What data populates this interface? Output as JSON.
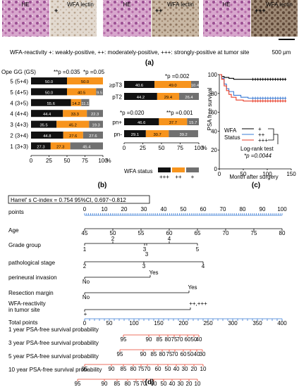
{
  "panel_a": {
    "images": [
      {
        "he_label": "HE",
        "wfa_label": "WFA lectin",
        "marker": "+"
      },
      {
        "he_label": "HE",
        "wfa_label": "WFA lectin",
        "marker": "++"
      },
      {
        "he_label": "HE",
        "wfa_label": "WFA lectin",
        "marker": "+++"
      }
    ],
    "caption": "WFA-reactivity +: weakly-positive, ++: moderately-positive, +++: strongly-positive at tumor site",
    "scale_bar": "500 μm",
    "label": "(a)"
  },
  "panel_b": {
    "label": "(b)",
    "axis_title": "Ope GG (GS)",
    "legend_title": "WFA status",
    "legend": [
      "+++",
      "++",
      "+"
    ],
    "colors": {
      "+++": "#111111",
      "++": "#f7941d",
      "+": "#707070"
    },
    "pvalues_left": [
      "**p =0.035",
      "*p =0.05"
    ],
    "pvalues_right": [
      "*p =0.002",
      "*p =0.020",
      "**p =0.001"
    ],
    "xticks": [
      "0",
      "25",
      "50",
      "75",
      "100",
      "%"
    ]
  },
  "panel_c": {
    "label": "(c)",
    "ylabel": "PSA free survival",
    "xlabel": "Month  after surgery",
    "legend_title": "WFA\nStatus",
    "legend": [
      "+",
      "++",
      "+++"
    ],
    "test_label": "Log-rank test",
    "pvalue": "*p =0.0044",
    "xticks": [
      "0",
      "50",
      "100",
      "150"
    ],
    "yticks": [
      "0",
      "20",
      "40",
      "60",
      "80",
      "100"
    ]
  },
  "chart_data": [
    {
      "type": "bar",
      "orientation": "horizontal-stacked-percent",
      "title": "",
      "ylabel": "Ope GG (GS)",
      "categories": [
        "5 (5+4)",
        "5 (4+5)",
        "4 (3+5)",
        "4 (4+4)",
        "3 (4+3)",
        "2 (3+4)",
        "1 (3+3)"
      ],
      "series": [
        {
          "name": "+++",
          "values": [
            50.0,
            50.0,
            55.6,
            44.4,
            35.5,
            44.8,
            27.3
          ]
        },
        {
          "name": "++",
          "values": [
            50.0,
            40.5,
            14.2,
            33.3,
            45.2,
            27.6,
            27.3
          ]
        },
        {
          "name": "+",
          "values": [
            0,
            9.5,
            11.1,
            22.3,
            19.3,
            27.6,
            45.4
          ]
        }
      ],
      "xlim": [
        0,
        100
      ]
    },
    {
      "type": "bar",
      "orientation": "horizontal-stacked-percent",
      "title": "",
      "categories": [
        "≥pT3",
        "pT2"
      ],
      "series": [
        {
          "name": "+++",
          "values": [
            40.6,
            44.2
          ]
        },
        {
          "name": "++",
          "values": [
            49.0,
            29.4
          ]
        },
        {
          "name": "+",
          "values": [
            10.4,
            26.4
          ]
        }
      ],
      "xlim": [
        0,
        100
      ]
    },
    {
      "type": "bar",
      "orientation": "horizontal-stacked-percent",
      "title": "",
      "categories": [
        "pn+",
        "pn-"
      ],
      "series": [
        {
          "name": "+++",
          "values": [
            46.6,
            29.1
          ]
        },
        {
          "name": "++",
          "values": [
            37.7,
            30.7
          ]
        },
        {
          "name": "+",
          "values": [
            15.7,
            39.2
          ]
        }
      ],
      "xlim": [
        0,
        100
      ]
    },
    {
      "type": "line",
      "title": "",
      "xlabel": "Month  after surgery",
      "ylabel": "PSA free survival",
      "xlim": [
        0,
        150
      ],
      "ylim": [
        0,
        100
      ],
      "series": [
        {
          "name": "+",
          "x": [
            0,
            5,
            10,
            20,
            30,
            60,
            100,
            140
          ],
          "y": [
            100,
            98,
            97,
            96,
            95,
            95,
            95,
            95
          ]
        },
        {
          "name": "++",
          "x": [
            0,
            5,
            10,
            15,
            20,
            30,
            45,
            60,
            140
          ],
          "y": [
            100,
            96,
            90,
            85,
            82,
            78,
            76,
            75,
            75
          ]
        },
        {
          "name": "+++",
          "x": [
            0,
            5,
            10,
            15,
            20,
            25,
            35,
            50,
            140
          ],
          "y": [
            100,
            95,
            88,
            83,
            79,
            76,
            73,
            72,
            72
          ]
        }
      ]
    }
  ],
  "panel_d": {
    "label": "(d)",
    "cindex": "Harrel' s C-index = 0.754 95%CI, 0.697~0.812",
    "rows": {
      "points": "points",
      "age": "Age",
      "grade": "Grade group",
      "path": "pathological stage",
      "perineural": "perineural invasion",
      "resection": "Resection margin",
      "wfa": "WFA-reactivity",
      "wfa2": "in tumor site",
      "total": "Total points",
      "y1": "1 year PSA-free survival probability",
      "y3": "3 year PSA-free survival probability",
      "y5": "5 year PSA-free survival probability",
      "y10": "10 year PSA-free survival probability"
    },
    "points_ticks": [
      "0",
      "10",
      "20",
      "30",
      "40",
      "50",
      "60",
      "70",
      "80",
      "90",
      "100"
    ],
    "age_ticks": [
      "45",
      "50",
      "55",
      "60",
      "65",
      "70",
      "75",
      "80"
    ],
    "grade_ticks": [
      "1",
      "2",
      "3",
      "3",
      "4",
      "5"
    ],
    "path_ticks": [
      "2",
      "3",
      "4"
    ],
    "perineural_ticks": [
      "No",
      "Yes"
    ],
    "resection_ticks": [
      "No",
      "Yes"
    ],
    "wfa_ticks": [
      "+",
      "++,+++"
    ],
    "total_ticks": [
      "0",
      "50",
      "100",
      "150",
      "200",
      "250",
      "300",
      "350",
      "400"
    ],
    "y1_ticks": [
      "95",
      "90",
      "85",
      "80",
      "75",
      "70",
      "60",
      "50",
      "40"
    ],
    "y3_ticks": [
      "95",
      "90",
      "85",
      "80",
      "75",
      "70",
      "60",
      "50",
      "40",
      "30"
    ],
    "y5_ticks": [
      "95",
      "90",
      "85",
      "80",
      "75",
      "70",
      "60",
      "50",
      "40",
      "30",
      "20",
      "10"
    ],
    "y10_ticks": [
      "95",
      "90",
      "85",
      "80",
      "75",
      "70",
      "60",
      "50",
      "40",
      "30",
      "20",
      "10"
    ]
  }
}
